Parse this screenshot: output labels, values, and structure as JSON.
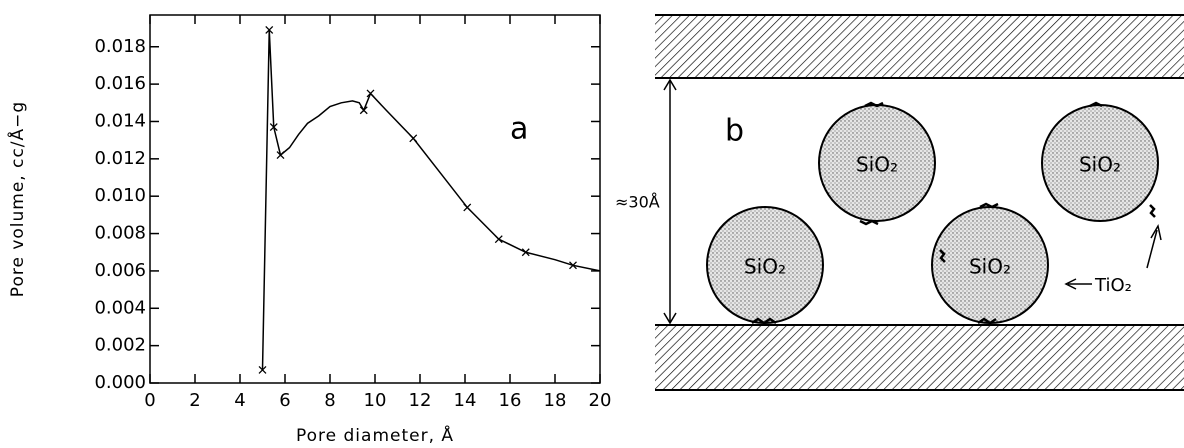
{
  "chart_data": {
    "type": "line",
    "xlabel": "Pore diameter, Å",
    "ylabel": "Pore volume, cc/Å−g",
    "annotation": "a",
    "xlim": [
      0,
      20
    ],
    "ylim": [
      0,
      0.0197
    ],
    "xticks": [
      0,
      2,
      4,
      6,
      8,
      10,
      12,
      14,
      16,
      18,
      20
    ],
    "yticks": [
      {
        "value": 0,
        "label": "0.000"
      },
      {
        "value": 0.002,
        "label": "0.002"
      },
      {
        "value": 0.004,
        "label": "0.004"
      },
      {
        "value": 0.006,
        "label": "0.006"
      },
      {
        "value": 0.008,
        "label": "0.008"
      },
      {
        "value": 0.01,
        "label": "0.010"
      },
      {
        "value": 0.012,
        "label": "0.012"
      },
      {
        "value": 0.014,
        "label": "0.014"
      },
      {
        "value": 0.016,
        "label": "0.016"
      },
      {
        "value": 0.018,
        "label": "0.018"
      }
    ],
    "series": [
      {
        "color": "#000000",
        "x": [
          5.0,
          5.3,
          5.5,
          5.8,
          6.2,
          6.6,
          7.0,
          7.5,
          8.0,
          8.5,
          9.0,
          9.3,
          9.5,
          9.8,
          10.5,
          11.7,
          13.0,
          14.1,
          15.5,
          16.7,
          18.0,
          18.8,
          20.0
        ],
        "values": [
          0.0007,
          0.0189,
          0.0137,
          0.0122,
          0.0126,
          0.0133,
          0.0139,
          0.0143,
          0.0148,
          0.015,
          0.0151,
          0.015,
          0.0146,
          0.0155,
          0.0146,
          0.0131,
          0.0111,
          0.0094,
          0.0077,
          0.007,
          0.0066,
          0.0063,
          0.006
        ]
      },
      {
        "color": "#000000",
        "marker": "x",
        "x": [
          5.0,
          5.3,
          5.5,
          5.8,
          9.5,
          9.8,
          11.7,
          14.1,
          15.5,
          16.7,
          18.8
        ],
        "values": [
          0.0007,
          0.0189,
          0.0137,
          0.0122,
          0.0146,
          0.0155,
          0.0131,
          0.0094,
          0.0077,
          0.007,
          0.0063
        ]
      }
    ]
  },
  "diagram": {
    "label": "b",
    "dimension": "≈30Å",
    "particles": [
      "SiO₂",
      "SiO₂",
      "SiO₂",
      "SiO₂"
    ],
    "coating": "TiO₂"
  }
}
